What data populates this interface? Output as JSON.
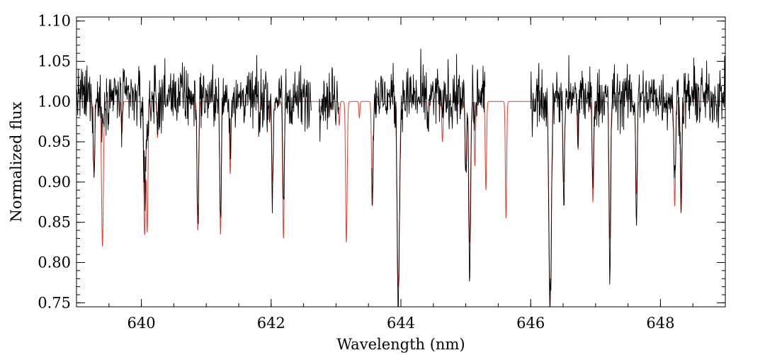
{
  "chart_data": {
    "type": "line",
    "title": "",
    "xlabel": "Wavelength (nm)",
    "ylabel": "Normalized flux",
    "xlim": [
      639.0,
      649.0
    ],
    "ylim": [
      0.745,
      1.105
    ],
    "xticks": [
      640,
      642,
      644,
      646,
      648
    ],
    "xtick_labels": [
      "640",
      "642",
      "644",
      "646",
      "648"
    ],
    "xminor_step": 0.5,
    "yticks": [
      0.75,
      0.8,
      0.85,
      0.9,
      0.95,
      1.0,
      1.05,
      1.1
    ],
    "ytick_labels": [
      "0.75",
      "0.80",
      "0.85",
      "0.90",
      "0.95",
      "1.00",
      "1.05",
      "1.10"
    ],
    "yminor_step": 0.01,
    "grid": false,
    "legend": "none",
    "series": [
      {
        "role": "observed",
        "color": "#000000",
        "continuum": 1.005,
        "noise": 0.018,
        "segments": [
          [
            639.0,
            642.62
          ],
          [
            642.74,
            643.05
          ],
          [
            643.55,
            645.3
          ],
          [
            646.0,
            649.0
          ]
        ]
      },
      {
        "role": "model",
        "color": "#e8392b",
        "continuum": 1.0,
        "noise": 0
      }
    ],
    "absorption_lines": [
      {
        "center": 639.27,
        "model_depth": 0.085,
        "obs_depth": 0.085,
        "width": 0.012
      },
      {
        "center": 639.4,
        "model_depth": 0.18,
        "obs_depth": 0.04,
        "width": 0.014
      },
      {
        "center": 639.7,
        "model_depth": 0.04,
        "obs_depth": 0.03,
        "width": 0.01
      },
      {
        "center": 640.05,
        "model_depth": 0.165,
        "obs_depth": 0.12,
        "width": 0.014
      },
      {
        "center": 640.09,
        "model_depth": 0.16,
        "obs_depth": 0.06,
        "width": 0.012
      },
      {
        "center": 640.25,
        "model_depth": 0.045,
        "obs_depth": 0.03,
        "width": 0.01
      },
      {
        "center": 640.87,
        "model_depth": 0.16,
        "obs_depth": 0.16,
        "width": 0.012
      },
      {
        "center": 641.22,
        "model_depth": 0.165,
        "obs_depth": 0.165,
        "width": 0.012
      },
      {
        "center": 641.37,
        "model_depth": 0.09,
        "obs_depth": 0.06,
        "width": 0.01
      },
      {
        "center": 641.82,
        "model_depth": 0.03,
        "obs_depth": 0.03,
        "width": 0.01
      },
      {
        "center": 642.02,
        "model_depth": 0.1,
        "obs_depth": 0.13,
        "width": 0.012
      },
      {
        "center": 642.19,
        "model_depth": 0.17,
        "obs_depth": 0.135,
        "width": 0.012
      },
      {
        "center": 642.92,
        "model_depth": 0.01,
        "obs_depth": 0.01,
        "width": 0.008
      },
      {
        "center": 643.05,
        "model_depth": 0.03,
        "obs_depth": 0.0,
        "width": 0.008
      },
      {
        "center": 643.16,
        "model_depth": 0.175,
        "obs_depth": 0.0,
        "width": 0.012
      },
      {
        "center": 643.36,
        "model_depth": 0.02,
        "obs_depth": 0.0,
        "width": 0.008
      },
      {
        "center": 643.56,
        "model_depth": 0.13,
        "obs_depth": 0.11,
        "width": 0.012
      },
      {
        "center": 643.96,
        "model_depth": 0.23,
        "obs_depth": 0.25,
        "width": 0.018
      },
      {
        "center": 644.42,
        "model_depth": 0.03,
        "obs_depth": 0.03,
        "width": 0.01
      },
      {
        "center": 644.64,
        "model_depth": 0.05,
        "obs_depth": 0.03,
        "width": 0.01
      },
      {
        "center": 645.0,
        "model_depth": 0.08,
        "obs_depth": 0.1,
        "width": 0.012
      },
      {
        "center": 645.06,
        "model_depth": 0.175,
        "obs_depth": 0.23,
        "width": 0.014
      },
      {
        "center": 645.14,
        "model_depth": 0.08,
        "obs_depth": 0.04,
        "width": 0.01
      },
      {
        "center": 645.31,
        "model_depth": 0.11,
        "obs_depth": 0.0,
        "width": 0.01
      },
      {
        "center": 645.62,
        "model_depth": 0.145,
        "obs_depth": 0.0,
        "width": 0.01
      },
      {
        "center": 646.3,
        "model_depth": 0.255,
        "obs_depth": 0.26,
        "width": 0.018
      },
      {
        "center": 646.51,
        "model_depth": 0.1,
        "obs_depth": 0.12,
        "width": 0.012
      },
      {
        "center": 646.73,
        "model_depth": 0.06,
        "obs_depth": 0.04,
        "width": 0.01
      },
      {
        "center": 646.96,
        "model_depth": 0.125,
        "obs_depth": 0.11,
        "width": 0.012
      },
      {
        "center": 647.22,
        "model_depth": 0.17,
        "obs_depth": 0.235,
        "width": 0.012
      },
      {
        "center": 647.63,
        "model_depth": 0.115,
        "obs_depth": 0.145,
        "width": 0.012
      },
      {
        "center": 648.22,
        "model_depth": 0.13,
        "obs_depth": 0.12,
        "width": 0.012
      },
      {
        "center": 648.32,
        "model_depth": 0.135,
        "obs_depth": 0.12,
        "width": 0.012
      }
    ]
  }
}
